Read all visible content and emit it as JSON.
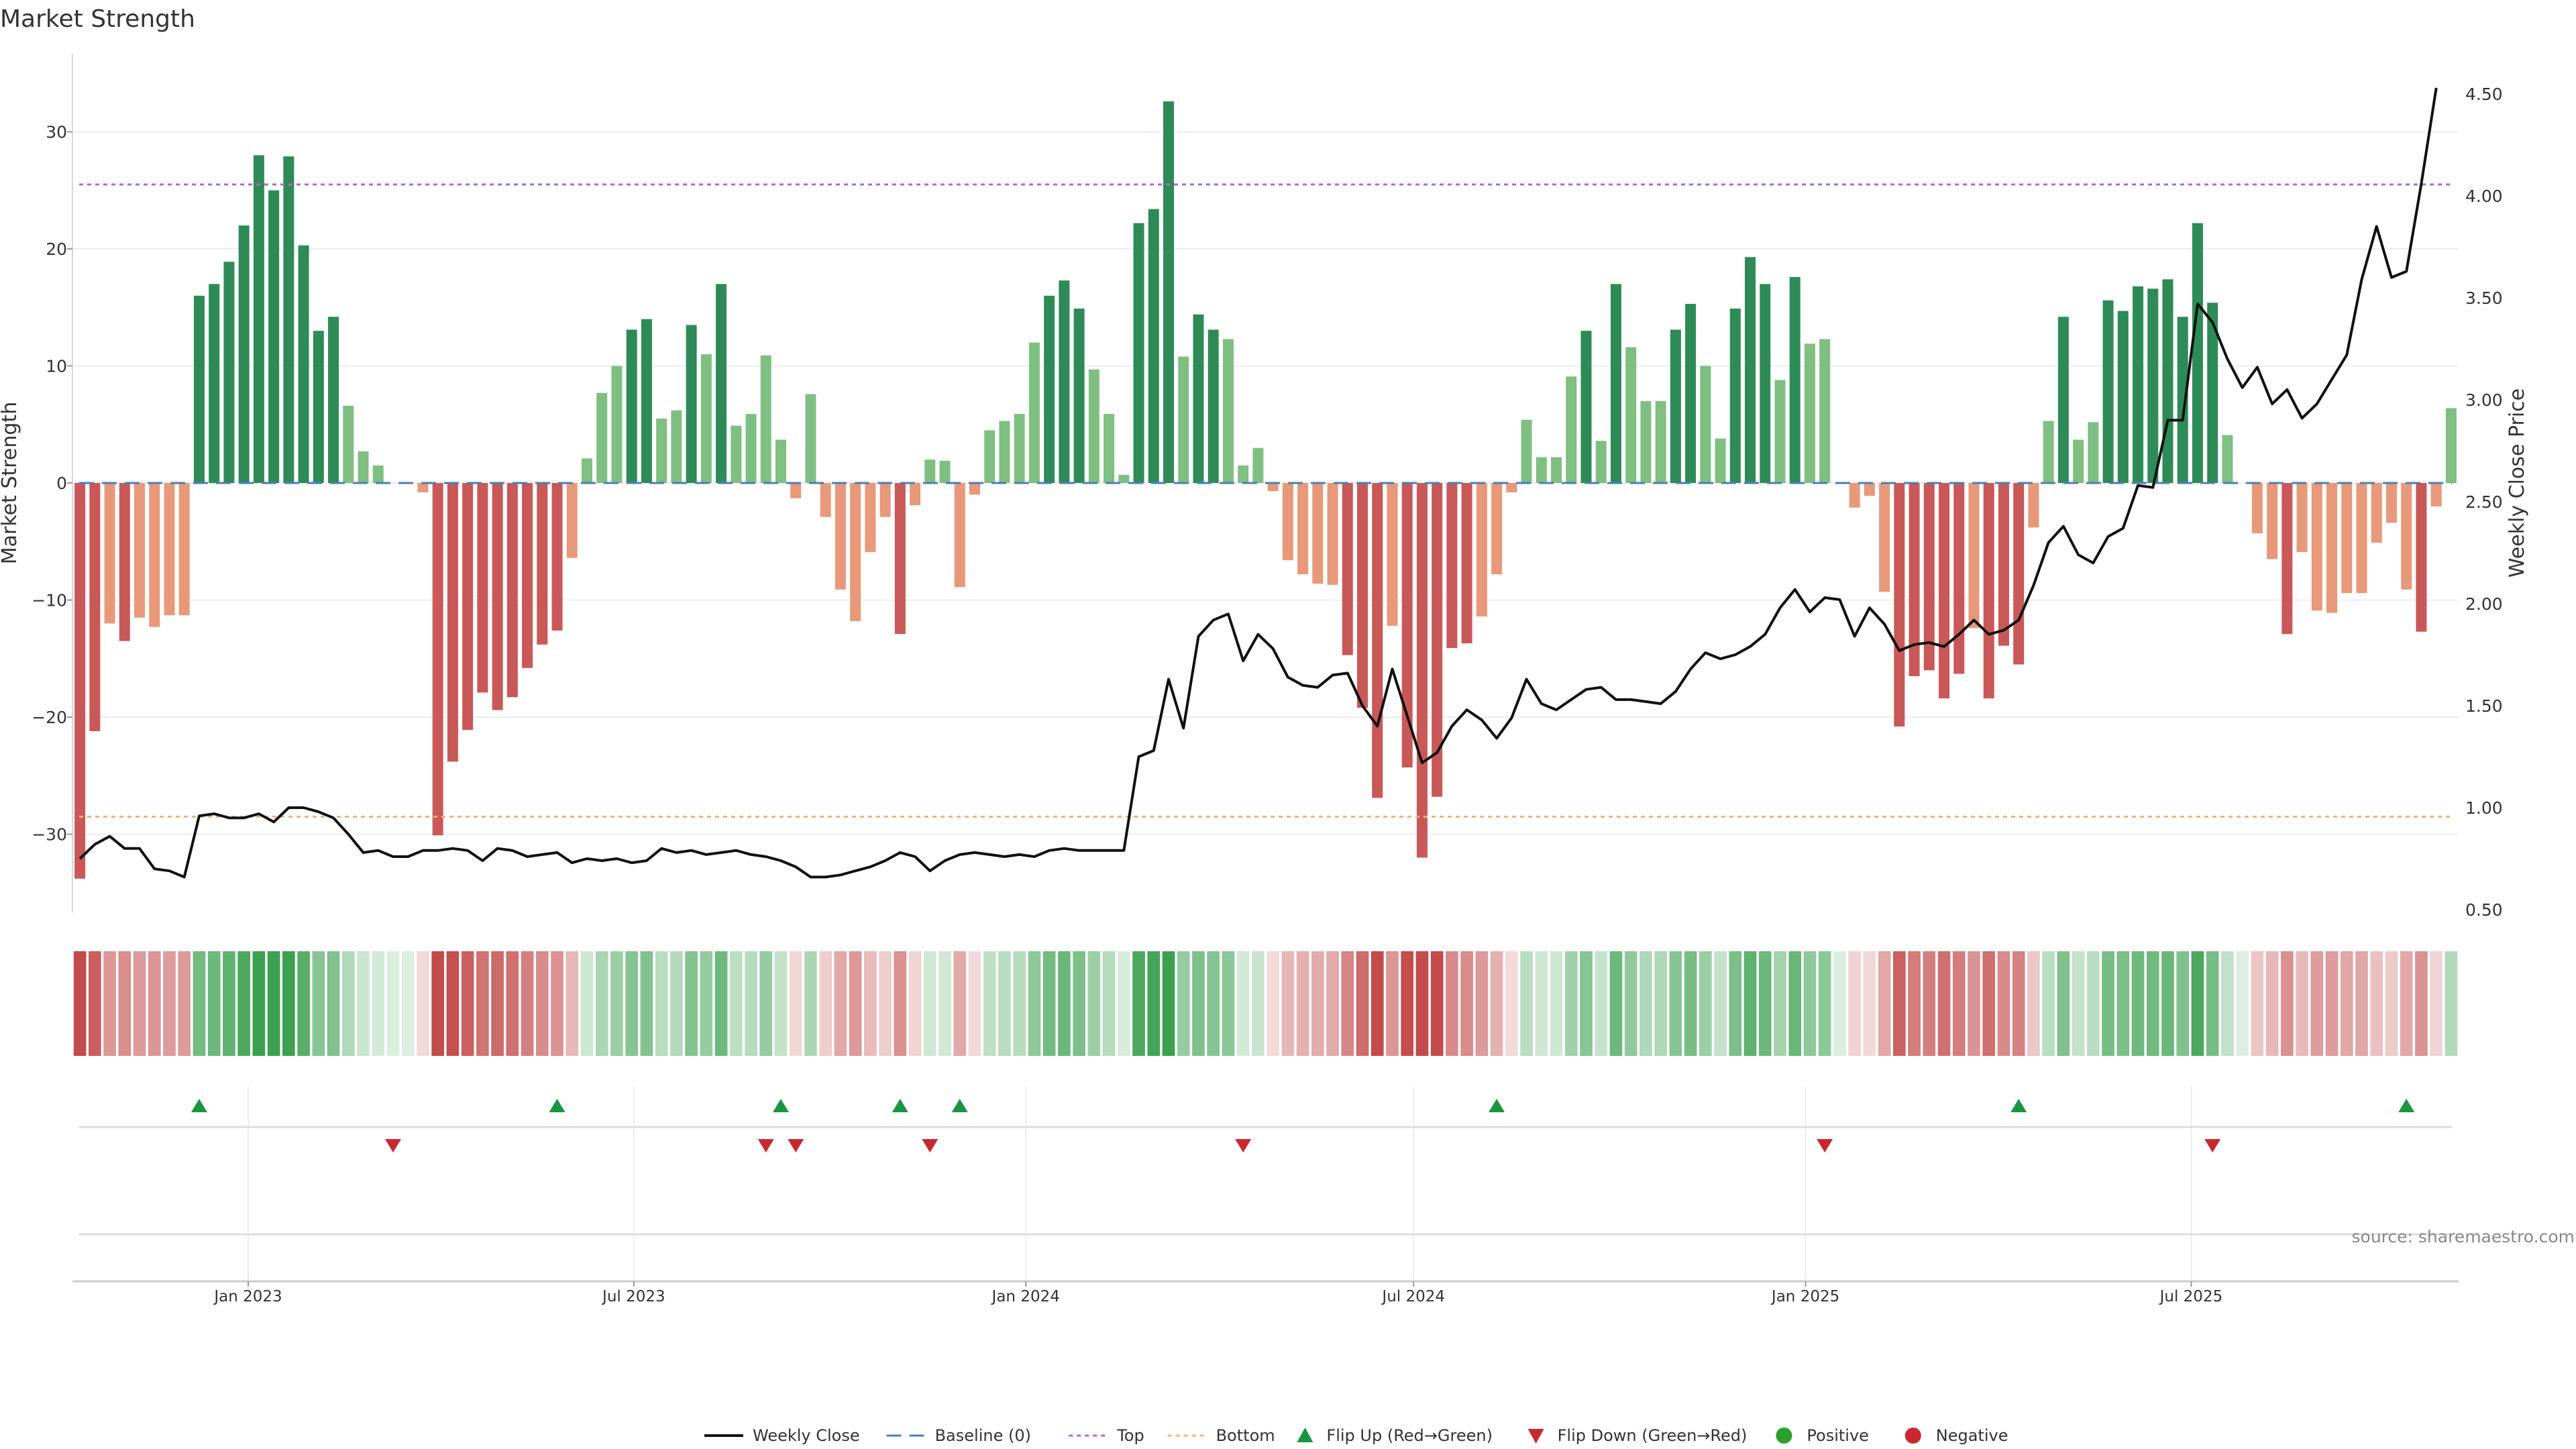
{
  "chart_data": {
    "type": "bar",
    "title": "Market Strength",
    "ylabel": "Market Strength",
    "y2label": "Weekly Close Price",
    "ylim": [
      -37,
      36
    ],
    "y2lim": [
      0.45,
      4.6
    ],
    "yticks": [
      -30,
      -20,
      -10,
      0,
      10,
      20,
      30
    ],
    "y2ticks": [
      "0.50",
      "1.00",
      "1.50",
      "2.00",
      "2.50",
      "3.00",
      "3.50",
      "4.00",
      "4.50"
    ],
    "x_start": "2022-10-14",
    "x_step_days": 7,
    "x_ticks": [
      {
        "label": "Jan 2023",
        "date": "2023-01-01"
      },
      {
        "label": "Jul 2023",
        "date": "2023-07-01"
      },
      {
        "label": "Jan 2024",
        "date": "2024-01-01"
      },
      {
        "label": "Jul 2024",
        "date": "2024-07-01"
      },
      {
        "label": "Jan 2025",
        "date": "2025-01-01"
      },
      {
        "label": "Jul 2025",
        "date": "2025-07-01"
      }
    ],
    "grid": true,
    "top_line": 25.5,
    "bottom_line": -28.5,
    "strength": [
      -33.8,
      -21.2,
      -12,
      -13.5,
      -11.5,
      -12.3,
      -11.3,
      -11.3,
      16,
      17,
      18.9,
      22,
      28,
      25,
      27.9,
      20.3,
      13,
      14.2,
      6.6,
      2.7,
      1.5,
      0,
      0,
      -0.8,
      -30.1,
      -23.8,
      -21.1,
      -17.9,
      -19.4,
      -18.3,
      -15.8,
      -13.8,
      -12.6,
      -6.4,
      2.1,
      7.7,
      10,
      13.1,
      14,
      5.5,
      6.2,
      13.5,
      11,
      17,
      4.9,
      5.9,
      10.9,
      3.7,
      -1.3,
      7.6,
      -2.9,
      -9.1,
      -11.8,
      -5.9,
      -2.9,
      -12.9,
      -1.9,
      2,
      1.9,
      -8.9,
      -1,
      4.5,
      5.3,
      5.9,
      12,
      16,
      17.3,
      14.9,
      9.7,
      5.9,
      0.7,
      22.2,
      23.4,
      32.6,
      10.8,
      14.4,
      13.1,
      12.3,
      1.5,
      3,
      -0.7,
      -6.6,
      -7.8,
      -8.6,
      -8.7,
      -14.7,
      -19.2,
      -26.9,
      -12.2,
      -24.3,
      -32,
      -26.8,
      -14.1,
      -13.7,
      -11.4,
      -7.8,
      -0.8,
      5.4,
      2.2,
      2.2,
      9.1,
      13,
      3.6,
      17,
      11.6,
      7,
      7,
      13.1,
      15.3,
      10,
      3.8,
      14.9,
      19.3,
      17,
      8.8,
      17.6,
      11.9,
      12.3,
      0,
      -2.1,
      -1.1,
      -9.3,
      -20.8,
      -16.5,
      -16,
      -18.4,
      -16.3,
      -12.4,
      -18.4,
      -13.9,
      -15.5,
      -3.8,
      5.3,
      14.2,
      3.7,
      5.2,
      15.6,
      14.7,
      16.8,
      16.6,
      17.4,
      14.2,
      22.2,
      15.4,
      4.1,
      0,
      -4.3,
      -6.5,
      -12.9,
      -5.9,
      -10.9,
      -11.1,
      -9.4,
      -9.4,
      -5.1,
      -3.4,
      -9.1,
      -12.7,
      -2,
      6.4
    ],
    "weekly_close": [
      0.75,
      0.82,
      0.86,
      0.8,
      0.8,
      0.7,
      0.69,
      0.66,
      0.96,
      0.97,
      0.95,
      0.95,
      0.97,
      0.93,
      1.0,
      1.0,
      0.98,
      0.95,
      0.87,
      0.78,
      0.79,
      0.76,
      0.76,
      0.79,
      0.79,
      0.8,
      0.79,
      0.74,
      0.8,
      0.79,
      0.76,
      0.77,
      0.78,
      0.73,
      0.75,
      0.74,
      0.75,
      0.73,
      0.74,
      0.8,
      0.78,
      0.79,
      0.77,
      0.78,
      0.79,
      0.77,
      0.76,
      0.74,
      0.71,
      0.66,
      0.66,
      0.67,
      0.69,
      0.71,
      0.74,
      0.78,
      0.76,
      0.69,
      0.74,
      0.77,
      0.78,
      0.77,
      0.76,
      0.77,
      0.76,
      0.79,
      0.8,
      0.79,
      0.79,
      0.79,
      0.79,
      1.25,
      1.28,
      1.63,
      1.39,
      1.84,
      1.92,
      1.95,
      1.72,
      1.85,
      1.78,
      1.64,
      1.6,
      1.59,
      1.65,
      1.66,
      1.5,
      1.4,
      1.68,
      1.45,
      1.22,
      1.27,
      1.4,
      1.48,
      1.43,
      1.34,
      1.44,
      1.63,
      1.51,
      1.48,
      1.53,
      1.58,
      1.59,
      1.53,
      1.53,
      1.52,
      1.51,
      1.57,
      1.68,
      1.76,
      1.73,
      1.75,
      1.79,
      1.85,
      1.98,
      2.07,
      1.96,
      2.03,
      2.02,
      1.84,
      1.98,
      1.9,
      1.77,
      1.8,
      1.81,
      1.79,
      1.85,
      1.92,
      1.85,
      1.87,
      1.92,
      2.09,
      2.3,
      2.38,
      2.24,
      2.2,
      2.33,
      2.37,
      2.58,
      2.57,
      2.9,
      2.9,
      3.47,
      3.38,
      3.2,
      3.06,
      3.16,
      2.98,
      3.05,
      2.91,
      2.98,
      3.1,
      3.22,
      3.59,
      3.85,
      3.6,
      3.63,
      4.06,
      4.53
    ],
    "flip_up_idx": [
      8,
      32,
      47,
      55,
      59,
      95,
      130,
      156
    ],
    "flip_down_idx": [
      21,
      46,
      48,
      57,
      78,
      117,
      143
    ],
    "colors": {
      "pos_strong": "#2e8b57",
      "pos_light": "#80bf82",
      "neg_strong": "#c95858",
      "neg_light": "#e8997a",
      "price": "#111111",
      "baseline": "#4a7fb5",
      "top": "#b267c9",
      "bottom": "#f0b27a",
      "flip_up": "#1a9641",
      "flip_down": "#c9282f",
      "positive": "#2ca02c",
      "negative": "#c9282f"
    },
    "legend": [
      {
        "label": "Weekly Close",
        "key": "close"
      },
      {
        "label": "Baseline (0)",
        "key": "baseline"
      },
      {
        "label": "Top",
        "key": "top"
      },
      {
        "label": "Bottom",
        "key": "bottom"
      },
      {
        "label": "Flip Up (Red→Green)",
        "key": "flip_up"
      },
      {
        "label": "Flip Down (Green→Red)",
        "key": "flip_down"
      },
      {
        "label": "Positive",
        "key": "positive"
      },
      {
        "label": "Negative",
        "key": "negative"
      }
    ],
    "legend_position": "bottom-center",
    "source": "source: sharemaestro.com"
  }
}
